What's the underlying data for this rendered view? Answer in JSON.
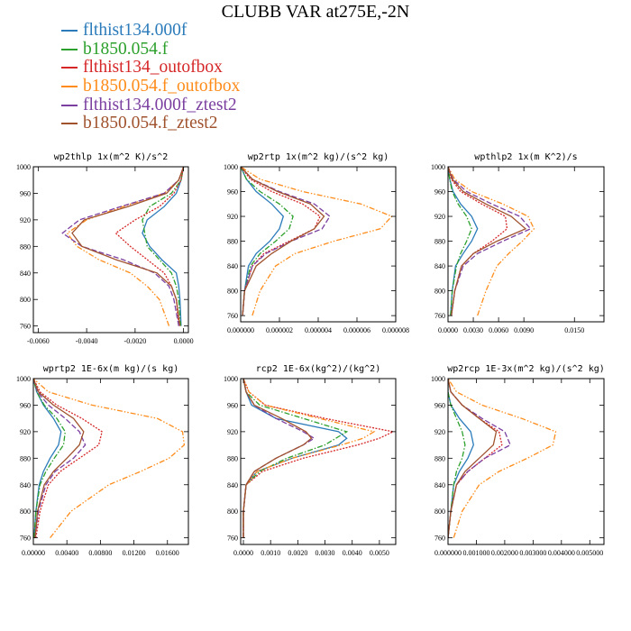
{
  "title": "CLUBB VAR at275E,-2N",
  "legend": [
    {
      "label": "flthist134.000f",
      "color": "#2b7bba",
      "dash": ""
    },
    {
      "label": "b1850.054.f",
      "color": "#2ca02c",
      "dash": "6,2,1.5,2"
    },
    {
      "label": "flthist134_outofbox",
      "color": "#d62728",
      "dash": "2,1.5"
    },
    {
      "label": "b1850.054.f_outofbox",
      "color": "#ff8c1a",
      "dash": "6,2,1.5,2,1.5,2"
    },
    {
      "label": "flthist134.000f_ztest2",
      "color": "#7b3fa0",
      "dash": "6,2.5"
    },
    {
      "label": "b1850.054.f_ztest2",
      "color": "#a0522d",
      "dash": ""
    }
  ],
  "chart_data": [
    {
      "type": "line",
      "title": "wp2thlp   1x(m^2 K)/s^2",
      "ylim": [
        1000,
        750
      ],
      "yticks": [
        "760",
        "800",
        "840",
        "880",
        "920",
        "960",
        "1000"
      ],
      "ytick_values": [
        760,
        800,
        840,
        880,
        920,
        960,
        1000
      ],
      "xlim": [
        -0.0062,
        0.0002
      ],
      "xticks": [
        "-0.0060",
        "-0.0040",
        "-0.0020",
        "0.0000"
      ],
      "xtick_values": [
        -0.006,
        -0.004,
        -0.002,
        0.0
      ],
      "y": [
        760,
        800,
        820,
        840,
        860,
        880,
        900,
        920,
        940,
        960,
        980,
        1000
      ],
      "series": [
        {
          "name": "flthist134.000f",
          "values": [
            -0.0001,
            -0.00015,
            -0.0002,
            -0.0003,
            -0.0009,
            -0.0014,
            -0.0017,
            -0.0015,
            -0.0008,
            -0.0003,
            -0.0001,
            0
          ]
        },
        {
          "name": "b1850.054.f",
          "values": [
            -0.00012,
            -0.0002,
            -0.0003,
            -0.0005,
            -0.001,
            -0.0015,
            -0.0016,
            -0.0017,
            -0.0014,
            -0.0005,
            -0.0001,
            0
          ]
        },
        {
          "name": "flthist134_outofbox",
          "values": [
            -0.0002,
            -0.0003,
            -0.0005,
            -0.0008,
            -0.0015,
            -0.0022,
            -0.0028,
            -0.002,
            -0.001,
            -0.0004,
            -0.0001,
            0
          ]
        },
        {
          "name": "b1850.054.f_outofbox",
          "values": [
            -0.0006,
            -0.001,
            -0.0015,
            -0.0022,
            -0.0035,
            -0.0044,
            -0.0048,
            -0.004,
            -0.0025,
            -0.0008,
            -0.0002,
            0
          ]
        },
        {
          "name": "flthist134.000f_ztest2",
          "values": [
            -0.0002,
            -0.0004,
            -0.0006,
            -0.0012,
            -0.0025,
            -0.0042,
            -0.005,
            -0.0043,
            -0.0026,
            -0.0008,
            -0.0002,
            0
          ]
        },
        {
          "name": "b1850.054.f_ztest2",
          "values": [
            -0.00015,
            -0.0003,
            -0.0005,
            -0.0011,
            -0.0028,
            -0.0042,
            -0.0046,
            -0.0041,
            -0.0023,
            -0.0007,
            -0.0002,
            0
          ]
        }
      ]
    },
    {
      "type": "line",
      "title": "wp2rtp   1x(m^2 kg)/(s^2 kg)",
      "ylim": [
        1000,
        750
      ],
      "yticks": [
        "760",
        "800",
        "840",
        "880",
        "920",
        "960",
        "1000"
      ],
      "ytick_values": [
        760,
        800,
        840,
        880,
        920,
        960,
        1000
      ],
      "xlim": [
        0,
        8e-06
      ],
      "xticks": [
        "0.000000",
        "0.000002",
        "0.000004",
        "0.000006",
        "0.000008"
      ],
      "xtick_values": [
        0,
        2e-06,
        4e-06,
        6e-06,
        8e-06
      ],
      "y": [
        760,
        800,
        840,
        860,
        880,
        900,
        920,
        940,
        960,
        980,
        1000
      ],
      "series": [
        {
          "name": "flthist134.000f",
          "values": [
            1e-07,
            2e-07,
            4e-07,
            8e-07,
            1.5e-06,
            2e-06,
            2.2e-06,
            1.6e-06,
            8e-07,
            3e-07,
            0
          ]
        },
        {
          "name": "b1850.054.f",
          "values": [
            1e-07,
            2e-07,
            5e-07,
            1e-06,
            1.8e-06,
            2.5e-06,
            2.7e-06,
            2e-06,
            1e-06,
            3e-07,
            0
          ]
        },
        {
          "name": "flthist134_outofbox",
          "values": [
            1e-07,
            2e-07,
            6e-07,
            1.2e-06,
            2.5e-06,
            3.8e-06,
            4.1e-06,
            3.2e-06,
            1.6e-06,
            5e-07,
            0
          ]
        },
        {
          "name": "b1850.054.f_outofbox",
          "values": [
            6e-07,
            1e-06,
            1.8e-06,
            2.8e-06,
            4.8e-06,
            7.2e-06,
            7.8e-06,
            6.2e-06,
            3.2e-06,
            1e-06,
            0
          ]
        },
        {
          "name": "flthist134.000f_ztest2",
          "values": [
            1e-07,
            2e-07,
            6e-07,
            1.3e-06,
            2.6e-06,
            4.2e-06,
            4.6e-06,
            3.8e-06,
            2e-06,
            6e-07,
            0
          ]
        },
        {
          "name": "b1850.054.f_ztest2",
          "values": [
            1e-07,
            2e-07,
            8e-07,
            1.6e-06,
            2.6e-06,
            3.8e-06,
            4.3e-06,
            3.6e-06,
            1.9e-06,
            6e-07,
            0
          ]
        }
      ]
    },
    {
      "type": "line",
      "title": "wpthlp2   1x(m K^2)/s",
      "ylim": [
        1000,
        750
      ],
      "yticks": [
        "760",
        "800",
        "840",
        "880",
        "920",
        "960",
        "1000"
      ],
      "ytick_values": [
        760,
        800,
        840,
        880,
        920,
        960,
        1000
      ],
      "xlim": [
        0,
        0.0185
      ],
      "xticks": [
        "0.0000",
        "0.0030",
        "0.0060",
        "0.0090",
        "0.0150"
      ],
      "xtick_values": [
        0,
        0.003,
        0.006,
        0.009,
        0.015
      ],
      "y": [
        760,
        800,
        840,
        860,
        880,
        900,
        920,
        940,
        960,
        980,
        1000
      ],
      "series": [
        {
          "name": "flthist134.000f",
          "values": [
            0.0003,
            0.0005,
            0.0009,
            0.0018,
            0.0028,
            0.0035,
            0.0028,
            0.0015,
            0.0006,
            0.0002,
            0
          ]
        },
        {
          "name": "b1850.054.f",
          "values": [
            0.0003,
            0.0005,
            0.001,
            0.0015,
            0.0022,
            0.0028,
            0.0022,
            0.0012,
            0.0005,
            0.0002,
            0
          ]
        },
        {
          "name": "flthist134_outofbox",
          "values": [
            0.0004,
            0.0008,
            0.0016,
            0.003,
            0.0052,
            0.007,
            0.0068,
            0.004,
            0.0015,
            0.0004,
            0
          ]
        },
        {
          "name": "b1850.054.f_outofbox",
          "values": [
            0.0035,
            0.0045,
            0.0058,
            0.0072,
            0.0088,
            0.0102,
            0.0095,
            0.0065,
            0.0028,
            0.0008,
            0
          ]
        },
        {
          "name": "flthist134.000f_ztest2",
          "values": [
            0.0004,
            0.0008,
            0.0018,
            0.0035,
            0.0065,
            0.0098,
            0.0085,
            0.0052,
            0.0022,
            0.0006,
            0
          ]
        },
        {
          "name": "b1850.054.f_ztest2",
          "values": [
            0.0004,
            0.0008,
            0.0016,
            0.003,
            0.0058,
            0.0092,
            0.0075,
            0.0045,
            0.0018,
            0.0005,
            0
          ]
        }
      ]
    },
    {
      "type": "line",
      "title": "wprtp2   1E-6x(m kg)/(s kg)",
      "ylim": [
        1000,
        750
      ],
      "yticks": [
        "760",
        "800",
        "840",
        "880",
        "920",
        "960",
        "1000"
      ],
      "ytick_values": [
        760,
        800,
        840,
        880,
        920,
        960,
        1000
      ],
      "xlim": [
        0,
        0.0185
      ],
      "xticks": [
        "0.00000",
        "0.00400",
        "0.00800",
        "0.01200",
        "0.01600"
      ],
      "xtick_values": [
        0,
        0.004,
        0.008,
        0.012,
        0.016
      ],
      "y": [
        760,
        800,
        840,
        860,
        880,
        900,
        920,
        940,
        960,
        980,
        1000
      ],
      "series": [
        {
          "name": "flthist134.000f",
          "values": [
            0.0001,
            0.0003,
            0.0007,
            0.0012,
            0.002,
            0.003,
            0.0033,
            0.0024,
            0.0012,
            0.0004,
            0
          ]
        },
        {
          "name": "b1850.054.f",
          "values": [
            0.0001,
            0.0003,
            0.0008,
            0.0015,
            0.0025,
            0.0036,
            0.0038,
            0.0028,
            0.0013,
            0.0004,
            0
          ]
        },
        {
          "name": "flthist134_outofbox",
          "values": [
            0.0003,
            0.0008,
            0.0018,
            0.0032,
            0.0055,
            0.0078,
            0.0082,
            0.0058,
            0.0028,
            0.0008,
            0
          ]
        },
        {
          "name": "b1850.054.f_outofbox",
          "values": [
            0.002,
            0.0045,
            0.009,
            0.0128,
            0.0162,
            0.018,
            0.0178,
            0.0148,
            0.007,
            0.0018,
            0
          ]
        },
        {
          "name": "flthist134.000f_ztest2",
          "values": [
            0.0002,
            0.0006,
            0.0015,
            0.0026,
            0.0048,
            0.0062,
            0.0055,
            0.0038,
            0.0018,
            0.0005,
            0
          ]
        },
        {
          "name": "b1850.054.f_ztest2",
          "values": [
            0.0002,
            0.0005,
            0.0013,
            0.0024,
            0.004,
            0.0055,
            0.006,
            0.0048,
            0.0024,
            0.0006,
            0
          ]
        }
      ]
    },
    {
      "type": "line",
      "title": "rcp2   1E-6x(kg^2)/(kg^2)",
      "ylim": [
        1000,
        750
      ],
      "yticks": [
        "760",
        "800",
        "840",
        "880",
        "920",
        "960",
        "1000"
      ],
      "ytick_values": [
        760,
        800,
        840,
        880,
        920,
        960,
        1000
      ],
      "xlim": [
        -0.0001,
        0.0056
      ],
      "xticks": [
        "0.0000",
        "0.0010",
        "0.0020",
        "0.0030",
        "0.0040",
        "0.0050"
      ],
      "xtick_values": [
        0,
        0.001,
        0.002,
        0.003,
        0.004,
        0.005
      ],
      "y": [
        760,
        800,
        840,
        860,
        880,
        900,
        910,
        920,
        940,
        960,
        980,
        1000
      ],
      "series": [
        {
          "name": "flthist134.000f",
          "values": [
            0,
            0,
            0.0001,
            0.0005,
            0.0018,
            0.0035,
            0.0038,
            0.0035,
            0.0012,
            0.0003,
            0.0001,
            0
          ]
        },
        {
          "name": "b1850.054.f",
          "values": [
            0,
            0,
            0.0001,
            0.0006,
            0.0016,
            0.003,
            0.0034,
            0.0038,
            0.0022,
            0.0006,
            0.0001,
            0
          ]
        },
        {
          "name": "flthist134_outofbox",
          "values": [
            0,
            0,
            0.0001,
            0.0007,
            0.0022,
            0.0042,
            0.005,
            0.0055,
            0.003,
            0.0008,
            0.0002,
            0
          ]
        },
        {
          "name": "b1850.054.f_outofbox",
          "values": [
            0,
            0,
            0.0001,
            0.0005,
            0.0018,
            0.0036,
            0.0044,
            0.0048,
            0.0028,
            0.0008,
            0.0002,
            0
          ]
        },
        {
          "name": "flthist134.000f_ztest2",
          "values": [
            0,
            0,
            0.0001,
            0.0004,
            0.0012,
            0.0022,
            0.0026,
            0.0022,
            0.0012,
            0.0004,
            0.0001,
            0
          ]
        },
        {
          "name": "b1850.054.f_ztest2",
          "values": [
            0,
            0,
            0.0001,
            0.0004,
            0.0012,
            0.0022,
            0.0025,
            0.0023,
            0.0014,
            0.0004,
            0.0001,
            0
          ]
        }
      ]
    },
    {
      "type": "line",
      "title": "wp2rcp   1E-3x(m^2 kg)/(s^2 kg)",
      "ylim": [
        1000,
        750
      ],
      "yticks": [
        "760",
        "800",
        "840",
        "880",
        "920",
        "960",
        "1000"
      ],
      "ytick_values": [
        760,
        800,
        840,
        880,
        920,
        960,
        1000
      ],
      "xlim": [
        0,
        0.0055
      ],
      "xticks": [
        "0.000000",
        "0.001000",
        "0.002000",
        "0.003000",
        "0.004000",
        "0.005000"
      ],
      "xtick_values": [
        0,
        0.001,
        0.002,
        0.003,
        0.004,
        0.005
      ],
      "y": [
        760,
        800,
        840,
        860,
        880,
        900,
        920,
        940,
        960,
        980,
        1000
      ],
      "series": [
        {
          "name": "flthist134.000f",
          "values": [
            0,
            0.0001,
            0.0002,
            0.0004,
            0.0007,
            0.0009,
            0.0008,
            0.0004,
            0.0001,
            0,
            0
          ]
        },
        {
          "name": "b1850.054.f",
          "values": [
            0,
            0.0001,
            0.0002,
            0.0003,
            0.0005,
            0.0006,
            0.0005,
            0.0003,
            0.0001,
            0,
            0
          ]
        },
        {
          "name": "flthist134_outofbox",
          "values": [
            0,
            0.0001,
            0.0003,
            0.0007,
            0.0013,
            0.0019,
            0.0018,
            0.0011,
            0.0005,
            0.0001,
            0
          ]
        },
        {
          "name": "b1850.054.f_outofbox",
          "values": [
            0.0002,
            0.0005,
            0.0011,
            0.0018,
            0.0028,
            0.0037,
            0.0038,
            0.0026,
            0.0012,
            0.0003,
            0
          ]
        },
        {
          "name": "flthist134.000f_ztest2",
          "values": [
            0,
            0.0001,
            0.0003,
            0.0007,
            0.0013,
            0.0022,
            0.002,
            0.0012,
            0.0005,
            0.0001,
            0
          ]
        },
        {
          "name": "b1850.054.f_ztest2",
          "values": [
            0,
            0.0001,
            0.0003,
            0.0006,
            0.0011,
            0.0016,
            0.0017,
            0.0011,
            0.0005,
            0.0001,
            0
          ]
        }
      ]
    }
  ]
}
